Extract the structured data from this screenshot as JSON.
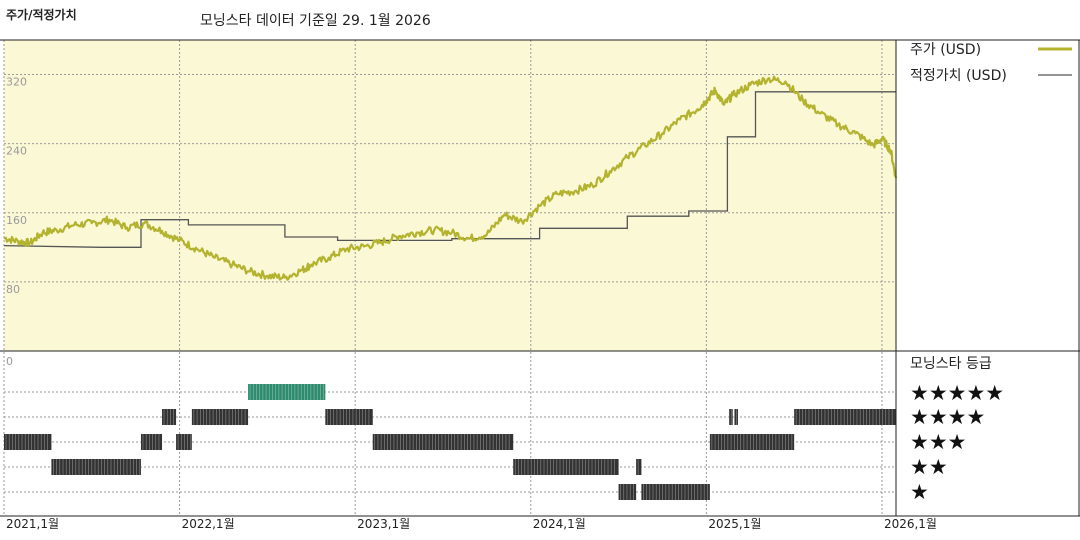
{
  "header": {
    "y_title": "주가/적정가치",
    "subtitle": "모닝스타 데이터 기준일 29. 1월 2026"
  },
  "colors": {
    "price_line": "#b3b330",
    "fair_value_line": "#555555",
    "plot_bg": "#fbf8d6",
    "grid": "#9a9a9a",
    "rating_bar": "#333333",
    "rating_bar_top": "#2e8b6e"
  },
  "chart_data": {
    "type": "line",
    "title": "모닝스타 데이터 기준일 29. 1월 2026",
    "ylabel": "주가/적정가치",
    "xlim": [
      2021.0,
      2026.08
    ],
    "ylim": [
      0,
      360
    ],
    "y_ticks": [
      "320",
      "240",
      "160",
      "80",
      "0"
    ],
    "y_tick_values": [
      320,
      240,
      160,
      80,
      0
    ],
    "x_ticks": [
      "2021,1월",
      "2022,1월",
      "2023,1월",
      "2024,1월",
      "2025,1월",
      "2026,1월"
    ],
    "x_tick_values": [
      2021,
      2022,
      2023,
      2024,
      2025,
      2026
    ],
    "legend_position": "right",
    "series": [
      {
        "name": "주가 (USD)",
        "x": [
          2021.0,
          2021.08,
          2021.15,
          2021.22,
          2021.3,
          2021.4,
          2021.5,
          2021.6,
          2021.7,
          2021.8,
          2021.9,
          2022.0,
          2022.1,
          2022.2,
          2022.3,
          2022.4,
          2022.5,
          2022.6,
          2022.7,
          2022.75,
          2022.85,
          2022.95,
          2023.05,
          2023.15,
          2023.25,
          2023.35,
          2023.45,
          2023.55,
          2023.65,
          2023.75,
          2023.85,
          2023.95,
          2024.05,
          2024.15,
          2024.25,
          2024.35,
          2024.45,
          2024.55,
          2024.65,
          2024.75,
          2024.85,
          2024.95,
          2025.0,
          2025.05,
          2025.1,
          2025.15,
          2025.25,
          2025.35,
          2025.45,
          2025.55,
          2025.65,
          2025.75,
          2025.85,
          2025.95,
          2026.0,
          2026.05,
          2026.08
        ],
        "values": [
          131,
          127,
          125,
          137,
          140,
          146,
          148,
          152,
          143,
          148,
          139,
          128,
          118,
          108,
          100,
          92,
          87,
          85,
          94,
          100,
          108,
          118,
          121,
          126,
          133,
          137,
          140,
          137,
          130,
          135,
          158,
          150,
          168,
          182,
          185,
          192,
          208,
          224,
          238,
          252,
          268,
          280,
          290,
          302,
          285,
          296,
          308,
          315,
          312,
          290,
          275,
          262,
          252,
          238,
          246,
          232,
          200
        ]
      },
      {
        "name": "적정가치 (USD)",
        "x": [
          2021.0,
          2021.55,
          2021.78,
          2021.78,
          2022.05,
          2022.05,
          2022.6,
          2022.6,
          2022.9,
          2022.9,
          2023.55,
          2023.55,
          2024.05,
          2024.05,
          2024.55,
          2024.55,
          2024.9,
          2024.9,
          2025.12,
          2025.12,
          2025.28,
          2025.28,
          2026.08
        ],
        "values": [
          122,
          120,
          120,
          152,
          152,
          146,
          146,
          132,
          132,
          128,
          128,
          130,
          130,
          142,
          142,
          156,
          156,
          162,
          162,
          248,
          248,
          300,
          300
        ]
      }
    ]
  },
  "legend": {
    "price_label": "주가 (USD)",
    "fair_value_label": "적정가치 (USD)"
  },
  "rating": {
    "title": "모닝스타 등급",
    "stars": [
      "★★★★★",
      "★★★★",
      "★★★",
      "★★",
      "★"
    ],
    "segments": [
      {
        "level": 3,
        "x0": 2021.0,
        "x1": 2021.27
      },
      {
        "level": 2,
        "x0": 2021.27,
        "x1": 2021.78
      },
      {
        "level": 3,
        "x0": 2021.78,
        "x1": 2021.9
      },
      {
        "level": 4,
        "x0": 2021.9,
        "x1": 2021.98
      },
      {
        "level": 3,
        "x0": 2021.98,
        "x1": 2022.07
      },
      {
        "level": 4,
        "x0": 2022.07,
        "x1": 2022.39
      },
      {
        "level": 5,
        "x0": 2022.39,
        "x1": 2022.83
      },
      {
        "level": 4,
        "x0": 2022.83,
        "x1": 2023.1
      },
      {
        "level": 3,
        "x0": 2023.1,
        "x1": 2023.9
      },
      {
        "level": 2,
        "x0": 2023.9,
        "x1": 2024.5
      },
      {
        "level": 1,
        "x0": 2024.5,
        "x1": 2024.6
      },
      {
        "level": 2,
        "x0": 2024.6,
        "x1": 2024.63
      },
      {
        "level": 1,
        "x0": 2024.63,
        "x1": 2025.02
      },
      {
        "level": 4,
        "x0": 2025.13,
        "x1": 2025.15
      },
      {
        "level": 4,
        "x0": 2025.16,
        "x1": 2025.18
      },
      {
        "level": 3,
        "x0": 2025.02,
        "x1": 2025.5
      },
      {
        "level": 4,
        "x0": 2025.5,
        "x1": 2026.08
      }
    ]
  }
}
